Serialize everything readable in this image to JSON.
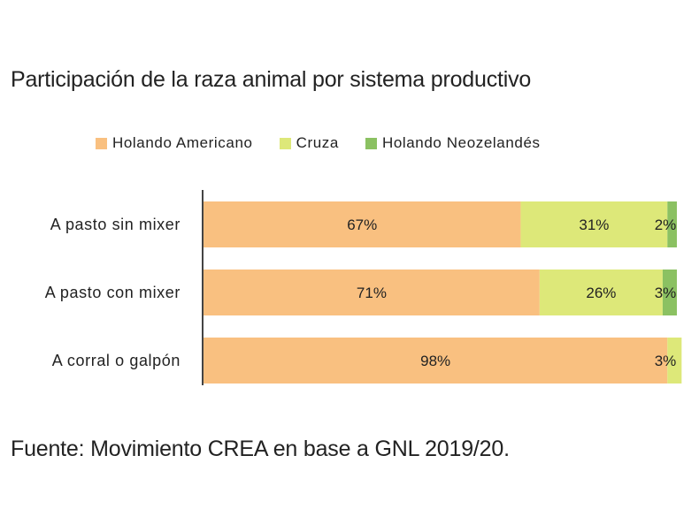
{
  "chart_data": {
    "type": "bar",
    "orientation": "horizontal",
    "stacked": true,
    "title": "Participación de la raza animal por sistema productivo",
    "categories": [
      "A pasto sin mixer",
      "A pasto con mixer",
      "A corral o galpón"
    ],
    "series": [
      {
        "name": "Holando Americano",
        "color": "#f9c080",
        "values": [
          67,
          71,
          98
        ],
        "labels": [
          "67%",
          "71%",
          "98%"
        ]
      },
      {
        "name": "Cruza",
        "color": "#dde879",
        "values": [
          31,
          26,
          3
        ],
        "labels": [
          "31%",
          "26%",
          "3%"
        ]
      },
      {
        "name": "Holando Neozelandés",
        "color": "#8bc162",
        "values": [
          2,
          3,
          0
        ],
        "labels": [
          "2%",
          "3%",
          ""
        ]
      }
    ],
    "xlim": [
      0,
      100
    ],
    "grid": false,
    "legend_position": "top",
    "source": "Fuente: Movimiento CREA en base a GNL 2019/20."
  }
}
